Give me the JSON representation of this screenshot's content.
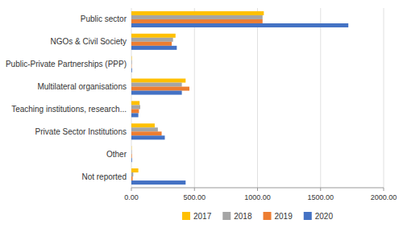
{
  "chart_data": {
    "type": "bar",
    "orientation": "horizontal",
    "categories": [
      "Public sector",
      "NGOs & Civil Society",
      "Public-Private Partnerships (PPP)",
      "Multilateral organisations",
      "Teaching institutions, research...",
      "Private Sector Institutions",
      "Other",
      "Not reported"
    ],
    "series": [
      {
        "name": "2017",
        "color": "#FFC000",
        "values": [
          1050,
          350,
          3,
          430,
          65,
          185,
          2,
          55
        ]
      },
      {
        "name": "2018",
        "color": "#A5A5A5",
        "values": [
          1040,
          330,
          4,
          400,
          70,
          210,
          3,
          15
        ]
      },
      {
        "name": "2019",
        "color": "#ED7D31",
        "values": [
          1040,
          320,
          2,
          460,
          60,
          240,
          4,
          10
        ]
      },
      {
        "name": "2020",
        "color": "#4472C4",
        "values": [
          1720,
          360,
          5,
          400,
          55,
          265,
          5,
          430
        ]
      }
    ],
    "xlim": [
      0,
      2000
    ],
    "xticks": [
      {
        "value": 0,
        "label": "0.00"
      },
      {
        "value": 500,
        "label": "500.00"
      },
      {
        "value": 1000,
        "label": "1000.00"
      },
      {
        "value": 1500,
        "label": "1500.00"
      },
      {
        "value": 2000,
        "label": "2000.00"
      }
    ],
    "grid": true,
    "legend": "bottom"
  }
}
